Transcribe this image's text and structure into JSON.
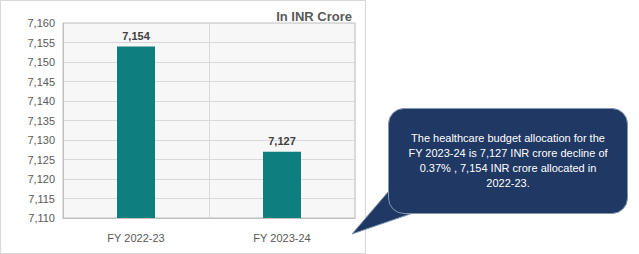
{
  "chart_data": {
    "type": "bar",
    "title": "In INR Crore",
    "categories": [
      "FY 2022-23",
      "FY 2023-24"
    ],
    "values": [
      7154,
      7127
    ],
    "value_labels": [
      "7,154",
      "7,127"
    ],
    "color": "#0e7f7e",
    "ylim": [
      7110,
      7160
    ],
    "yticks": [
      {
        "value": 7110,
        "label": "7,110"
      },
      {
        "value": 7115,
        "label": "7,115"
      },
      {
        "value": 7120,
        "label": "7,120"
      },
      {
        "value": 7125,
        "label": "7,125"
      },
      {
        "value": 7130,
        "label": "7,130"
      },
      {
        "value": 7135,
        "label": "7,135"
      },
      {
        "value": 7140,
        "label": "7,140"
      },
      {
        "value": 7145,
        "label": "7,145"
      },
      {
        "value": 7150,
        "label": "7,150"
      },
      {
        "value": 7155,
        "label": "7,155"
      },
      {
        "value": 7160,
        "label": "7,160"
      }
    ],
    "grid": true,
    "data_labels": true,
    "annotation": "The healthcare budget allocation for the FY 2023-24 is 7,127 INR crore decline of 0.37% , 7,154 INR crore allocated in 2022-23."
  }
}
